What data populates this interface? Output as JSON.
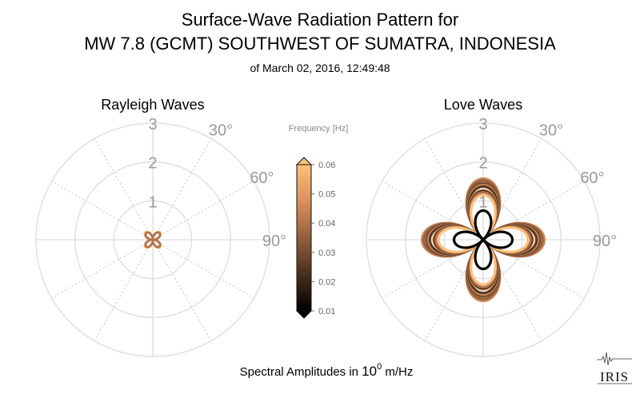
{
  "title_line1": "Surface-Wave Radiation Pattern for",
  "title_line2": "MW 7.8 (GCMT) SOUTHWEST OF SUMATRA, INDONESIA",
  "subtitle": "of March 02, 2016, 12:49:48",
  "footer": {
    "text": "Spectral Amplitudes in ",
    "base": "10",
    "exponent": "0",
    "unit": " m/Hz"
  },
  "logo_text": "IRIS",
  "colorbar": {
    "label": "Frequency [Hz]",
    "min": 0.01,
    "max": 0.06,
    "ticks": [
      "0.06",
      "0.05",
      "0.04",
      "0.03",
      "0.02",
      "0.01"
    ],
    "colors": [
      "#000000",
      "#4a2e1e",
      "#94603e",
      "#dc8f5c",
      "#fcc07c"
    ]
  },
  "chart_data": [
    {
      "type": "polar",
      "title": "Rayleigh Waves",
      "r_ticks": [
        "1",
        "2",
        "3"
      ],
      "r_max": 3,
      "angle_ticks": [
        "30°",
        "60°",
        "90°"
      ],
      "angle_values_deg": [
        30,
        60,
        90
      ],
      "grid": true,
      "series": [
        {
          "frequency": 0.06,
          "amplitude": 0.27,
          "lobe_angle_deg": 45
        },
        {
          "frequency": 0.05,
          "amplitude": 0.25,
          "lobe_angle_deg": 45
        },
        {
          "frequency": 0.04,
          "amplitude": 0.24,
          "lobe_angle_deg": 45
        }
      ]
    },
    {
      "type": "polar",
      "title": "Love Waves",
      "r_ticks": [
        "1",
        "2",
        "3"
      ],
      "r_max": 3,
      "angle_ticks": [
        "30°",
        "60°",
        "90°"
      ],
      "angle_values_deg": [
        30,
        60,
        90
      ],
      "grid": true,
      "series": [
        {
          "frequency": 0.01,
          "amplitude": 0.75,
          "lobe_angle_deg": 0
        },
        {
          "frequency": 0.02,
          "amplitude": 1.25,
          "lobe_angle_deg": 0
        },
        {
          "frequency": 0.025,
          "amplitude": 1.37,
          "lobe_angle_deg": 0
        },
        {
          "frequency": 0.03,
          "amplitude": 1.45,
          "lobe_angle_deg": 0
        },
        {
          "frequency": 0.035,
          "amplitude": 1.52,
          "lobe_angle_deg": 0
        },
        {
          "frequency": 0.04,
          "amplitude": 1.22,
          "lobe_angle_deg": 0
        },
        {
          "frequency": 0.045,
          "amplitude": 1.57,
          "lobe_angle_deg": 0
        },
        {
          "frequency": 0.05,
          "amplitude": 1.4,
          "lobe_angle_deg": 0
        },
        {
          "frequency": 0.055,
          "amplitude": 1.28,
          "lobe_angle_deg": 0
        },
        {
          "frequency": 0.06,
          "amplitude": 1.15,
          "lobe_angle_deg": 0
        }
      ]
    }
  ]
}
